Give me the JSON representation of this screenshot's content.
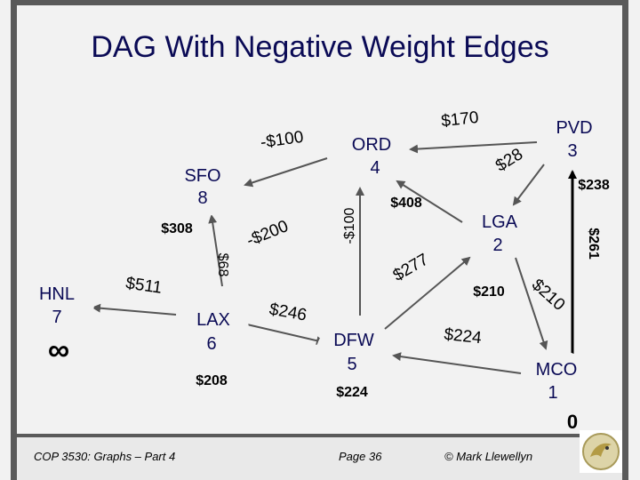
{
  "slide": {
    "title": "DAG With Negative Weight Edges",
    "footer_left": "COP 3530: Graphs – Part 4",
    "footer_center": "Page 36",
    "footer_right": "© Mark Llewellyn"
  },
  "nodes": {
    "sfo": {
      "name": "SFO",
      "value": "8"
    },
    "ord": {
      "name": "ORD",
      "value": "4"
    },
    "pvd": {
      "name": "PVD",
      "value": "3"
    },
    "lga": {
      "name": "LGA",
      "value": "2"
    },
    "hnl": {
      "name": "HNL",
      "value": "7",
      "dist": "∞"
    },
    "lax": {
      "name": "LAX",
      "value": "6"
    },
    "dfw": {
      "name": "DFW",
      "value": "5"
    },
    "mco": {
      "name": "MCO",
      "value": "1",
      "dist": "0"
    }
  },
  "edge_labels": {
    "ord_sfo": "-$100",
    "pvd_ord": "$170",
    "pvd_lga_28": "$28",
    "pvd_mco_238": "$238",
    "sfo_308": "$308",
    "dfw_ord": "-$100",
    "lga_ord": "$408",
    "lax_sfo": "-$200",
    "pvd_mco_261": "$261",
    "lax_sfo_68": "$68",
    "dfw_lga": "$277",
    "lax_hnl": "$511",
    "lga_210": "$210",
    "lga_mco": "$210",
    "lax_dfw": "$246",
    "mco_dfw": "$224",
    "lax_208": "$208",
    "dfw_224": "$224"
  }
}
